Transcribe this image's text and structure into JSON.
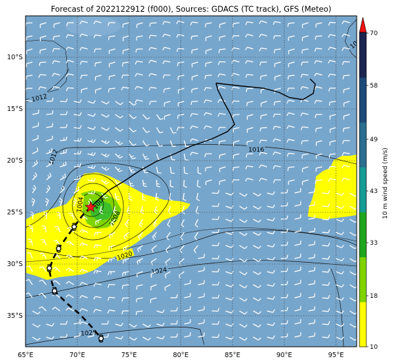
{
  "title": "Forecast of 2022122912 (f000), Sources: GDACS (TC track), GFS (Meteo)",
  "lon_range": [
    65,
    97
  ],
  "lat_range": [
    -38,
    -6
  ],
  "lon_ticks": [
    65,
    70,
    75,
    80,
    85,
    90,
    95
  ],
  "lat_ticks": [
    -10,
    -15,
    -20,
    -25,
    -30,
    -35
  ],
  "lon_tick_labels": [
    "65°E",
    "70°E",
    "75°E",
    "80°E",
    "85°E",
    "90°E",
    "95°E"
  ],
  "lat_tick_labels": [
    "10°S",
    "15°S",
    "20°S",
    "25°S",
    "30°S",
    "35°S"
  ],
  "colorbar": {
    "label": "10 m wind speed (m/s)",
    "ticks": [
      "10",
      "18",
      "33",
      "43",
      "49",
      "58",
      "70"
    ],
    "colors": [
      "#ffff00",
      "#7fd400",
      "#1fa61f",
      "#169c96",
      "#2a6e90",
      "#1d4a78",
      "#1c2550"
    ],
    "extend_color": "#ee1111"
  },
  "colors": {
    "ocean": "#77a6cc",
    "wind_yellow": "#ffff00",
    "wind_lime": "#7fd400",
    "wind_green": "#3cbf2a",
    "track_forecast": "#000000",
    "storm_marker": "#ff1a1a"
  },
  "isobar_labels": [
    "1012",
    "1012",
    "1004",
    "1000",
    "1008",
    "1016",
    "1020",
    "1024",
    "1028",
    "1016"
  ],
  "storm": {
    "lon": 71.3,
    "lat": -24.5,
    "symbol": "star"
  },
  "past_track": [
    [
      83.4,
      -12.5
    ],
    [
      84.2,
      -12.6
    ],
    [
      86.0,
      -12.8
    ],
    [
      88.0,
      -13.0
    ],
    [
      89.5,
      -13.4
    ],
    [
      90.5,
      -13.9
    ],
    [
      91.8,
      -14.1
    ],
    [
      92.8,
      -13.5
    ],
    [
      93.0,
      -12.6
    ],
    [
      92.5,
      -12.1
    ],
    [
      null,
      null
    ],
    [
      83.4,
      -12.5
    ],
    [
      83.6,
      -13.2
    ],
    [
      84.2,
      -14.4
    ],
    [
      84.8,
      -15.5
    ],
    [
      85.2,
      -16.5
    ],
    [
      84.5,
      -17.2
    ],
    [
      83.0,
      -17.9
    ],
    [
      81.0,
      -18.6
    ],
    [
      79.5,
      -19.3
    ],
    [
      77.6,
      -20.1
    ],
    [
      76.0,
      -21.0
    ],
    [
      74.5,
      -22.0
    ],
    [
      73.0,
      -22.9
    ],
    [
      71.8,
      -24.0
    ],
    [
      71.3,
      -24.5
    ]
  ],
  "forecast_track": [
    [
      71.3,
      -24.5
    ],
    [
      70.5,
      -25.3
    ],
    [
      69.7,
      -26.4
    ],
    [
      68.9,
      -27.5
    ],
    [
      68.2,
      -28.5
    ],
    [
      67.6,
      -29.6
    ],
    [
      67.3,
      -30.6
    ],
    [
      67.5,
      -31.6
    ],
    [
      67.8,
      -32.6
    ],
    [
      69.0,
      -33.8
    ],
    [
      70.3,
      -34.9
    ],
    [
      71.5,
      -36.2
    ],
    [
      72.3,
      -37.2
    ]
  ],
  "forecast_symbol_points": [
    [
      69.7,
      -26.4
    ],
    [
      68.2,
      -28.5
    ],
    [
      67.3,
      -30.4
    ],
    [
      67.8,
      -32.6
    ],
    [
      72.3,
      -37.2
    ]
  ]
}
